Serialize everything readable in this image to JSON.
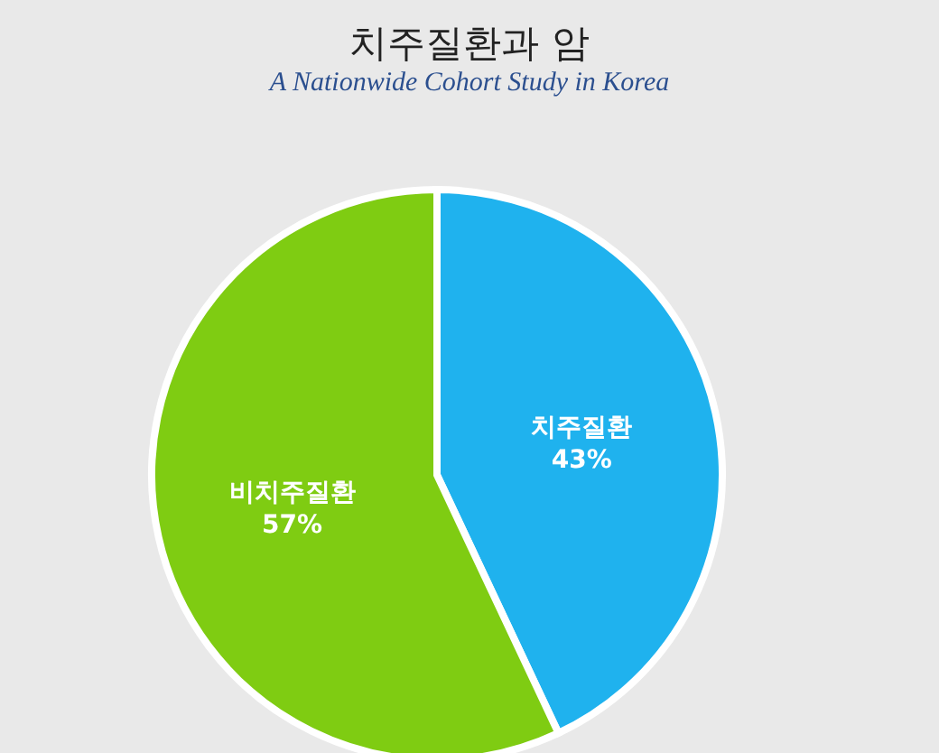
{
  "chart_data": {
    "type": "pie",
    "title": "치주질환과 암",
    "subtitle": "A Nationwide Cohort Study in Korea",
    "categories": [
      "치주질환",
      "비치주질환"
    ],
    "values": [
      43,
      57
    ],
    "colors": [
      "#1fb2ee",
      "#7fcc12"
    ],
    "value_labels": [
      "43%",
      "57%"
    ]
  }
}
